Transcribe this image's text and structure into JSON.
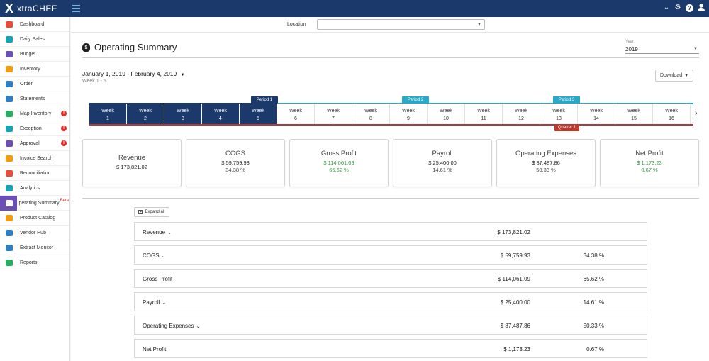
{
  "app": {
    "logo_mark": "X",
    "brand": "xtraCHEF"
  },
  "topbar": {
    "icons": [
      "chevron-down-icon",
      "gear-icon",
      "help-icon",
      "user-icon"
    ],
    "help_glyph": "?"
  },
  "sidebar": {
    "items": [
      {
        "label": "Dashboard",
        "icon": "dashboard-icon",
        "color": "#e74c3c"
      },
      {
        "label": "Daily Sales",
        "icon": "cash-icon",
        "color": "#17a2b8"
      },
      {
        "label": "Budget",
        "icon": "budget-icon",
        "color": "#6c4fb4"
      },
      {
        "label": "Inventory",
        "icon": "boxes-icon",
        "color": "#f39c12"
      },
      {
        "label": "Order",
        "icon": "cart-icon",
        "color": "#2d7fc1"
      },
      {
        "label": "Statements",
        "icon": "document-icon",
        "color": "#2d7fc1"
      },
      {
        "label": "Map Inventory",
        "icon": "map-icon",
        "color": "#27ae60",
        "alert": "!"
      },
      {
        "label": "Exception",
        "icon": "info-icon",
        "color": "#17a2b8",
        "alert": "!"
      },
      {
        "label": "Approval",
        "icon": "check-icon",
        "color": "#6c4fb4",
        "alert": "!"
      },
      {
        "label": "Invoice Search",
        "icon": "search-icon",
        "color": "#f39c12"
      },
      {
        "label": "Reconciliation",
        "icon": "balance-icon",
        "color": "#e74c3c"
      },
      {
        "label": "Analytics",
        "icon": "pie-icon",
        "color": "#17a2b8"
      },
      {
        "label": "Operating Summary",
        "icon": "money-bag-icon",
        "color": "#6c4fb4",
        "badge": "Beta",
        "active": true
      },
      {
        "label": "Product Catalog",
        "icon": "catalog-icon",
        "color": "#f39c12"
      },
      {
        "label": "Vendor Hub",
        "icon": "vendor-icon",
        "color": "#2d7fc1"
      },
      {
        "label": "Extract Monitor",
        "icon": "monitor-icon",
        "color": "#2d7fc1"
      },
      {
        "label": "Reports",
        "icon": "report-icon",
        "color": "#27ae60"
      }
    ]
  },
  "location": {
    "label": "Location",
    "value": ""
  },
  "page": {
    "title": "Operating Summary",
    "year_label": "Year",
    "year_value": "2019",
    "date_range": "January 1, 2019 - February 4, 2019",
    "week_range": "Week 1 - 5",
    "download_label": "Download",
    "expand_label": "Expand all"
  },
  "periods": [
    {
      "label": "Period 1",
      "color": "#1b3a6b"
    },
    {
      "label": "Period 2",
      "color": "#27a9c7"
    },
    {
      "label": "Period 3",
      "color": "#27a9c7"
    }
  ],
  "quarter_label": "Quarter 1",
  "weeks": [
    {
      "label": "Week",
      "num": "1",
      "selected": true
    },
    {
      "label": "Week",
      "num": "2",
      "selected": true
    },
    {
      "label": "Week",
      "num": "3",
      "selected": true
    },
    {
      "label": "Week",
      "num": "4",
      "selected": true
    },
    {
      "label": "Week",
      "num": "5",
      "selected": true
    },
    {
      "label": "Week",
      "num": "6"
    },
    {
      "label": "Week",
      "num": "7"
    },
    {
      "label": "Week",
      "num": "8"
    },
    {
      "label": "Week",
      "num": "9"
    },
    {
      "label": "Week",
      "num": "10"
    },
    {
      "label": "Week",
      "num": "11"
    },
    {
      "label": "Week",
      "num": "12"
    },
    {
      "label": "Week",
      "num": "13"
    },
    {
      "label": "Week",
      "num": "14"
    },
    {
      "label": "Week",
      "num": "15"
    },
    {
      "label": "Week",
      "num": "16"
    }
  ],
  "cards": [
    {
      "title": "Revenue",
      "value": "$ 173,821.02",
      "pct": ""
    },
    {
      "title": "COGS",
      "value": "$ 59,759.93",
      "pct": "34.38 %"
    },
    {
      "title": "Gross Profit",
      "value": "$ 114,061.09",
      "pct": "65.62 %",
      "positive": true
    },
    {
      "title": "Payroll",
      "value": "$ 25,400.00",
      "pct": "14.61 %"
    },
    {
      "title": "Operating Expenses",
      "value": "$ 87,487.86",
      "pct": "50.33 %"
    },
    {
      "title": "Net Profit",
      "value": "$ 1,173.23",
      "pct": "0.67 %",
      "positive": true
    }
  ],
  "summary_rows": [
    {
      "label": "Revenue",
      "expandable": true,
      "value": "$ 173,821.02",
      "pct": ""
    },
    {
      "label": "COGS",
      "expandable": true,
      "value": "$ 59,759.93",
      "pct": "34.38 %"
    },
    {
      "label": "Gross Profit",
      "expandable": false,
      "value": "$ 114,061.09",
      "pct": "65.62 %"
    },
    {
      "label": "Payroll",
      "expandable": true,
      "value": "$ 25,400.00",
      "pct": "14.61 %"
    },
    {
      "label": "Operating Expenses",
      "expandable": true,
      "value": "$ 87,487.86",
      "pct": "50.33 %"
    },
    {
      "label": "Net Profit",
      "expandable": false,
      "value": "$ 1,173.23",
      "pct": "0.67 %"
    }
  ],
  "colors": {
    "nav": "#1b3a6b",
    "accent": "#6c4fb4",
    "positive": "#2e9a3e",
    "quarter": "#c0392b"
  }
}
